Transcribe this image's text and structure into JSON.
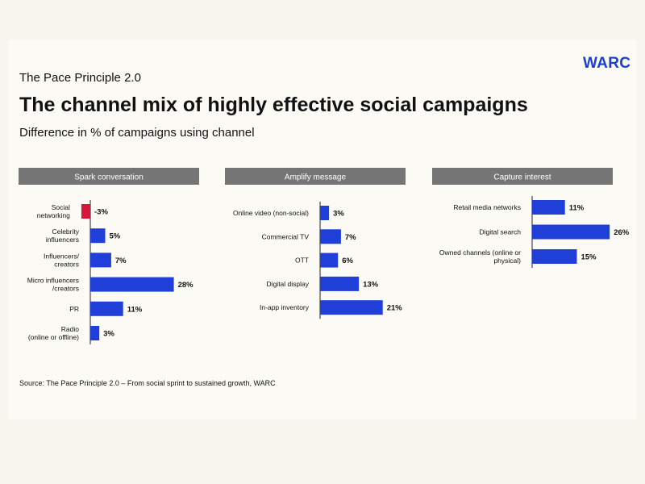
{
  "brand": {
    "logo": "WARC",
    "logo_color": "#1a3fd0"
  },
  "header": {
    "kicker": "The Pace Principle 2.0",
    "title": "The channel mix of highly effective social campaigns",
    "subtitle": "Difference in % of campaigns using channel"
  },
  "footer": {
    "source": "Source: The Pace Principle 2.0 – From social sprint to sustained growth, WARC"
  },
  "colors": {
    "positive": "#1f3fd8",
    "negative": "#d8163a",
    "panel_header": "#757575"
  },
  "chart_data": [
    {
      "type": "bar",
      "orientation": "horizontal",
      "title": "Spark conversation",
      "categories": [
        [
          "Social",
          "networking"
        ],
        [
          "Celebrity",
          "influencers"
        ],
        [
          "Influencers/",
          "creators"
        ],
        [
          "Micro influencers",
          "/creators"
        ],
        [
          "PR"
        ],
        [
          "Radio",
          "(online or offline)"
        ]
      ],
      "values": [
        -3,
        5,
        7,
        28,
        11,
        3
      ],
      "value_labels": [
        "-3%",
        "5%",
        "7%",
        "28%",
        "11%",
        "3%"
      ]
    },
    {
      "type": "bar",
      "orientation": "horizontal",
      "title": "Amplify message",
      "categories": [
        [
          "Online video (non-social)"
        ],
        [
          "Commercial TV"
        ],
        [
          "OTT"
        ],
        [
          "Digital display"
        ],
        [
          "In-app inventory"
        ]
      ],
      "values": [
        3,
        7,
        6,
        13,
        21
      ],
      "value_labels": [
        "3%",
        "7%",
        "6%",
        "13%",
        "21%"
      ]
    },
    {
      "type": "bar",
      "orientation": "horizontal",
      "title": "Capture interest",
      "categories": [
        [
          "Retail media networks"
        ],
        [
          "Digital search"
        ],
        [
          "Owned channels (online or",
          "physical)"
        ]
      ],
      "values": [
        11,
        26,
        15
      ],
      "value_labels": [
        "11%",
        "26%",
        "15%"
      ]
    }
  ]
}
